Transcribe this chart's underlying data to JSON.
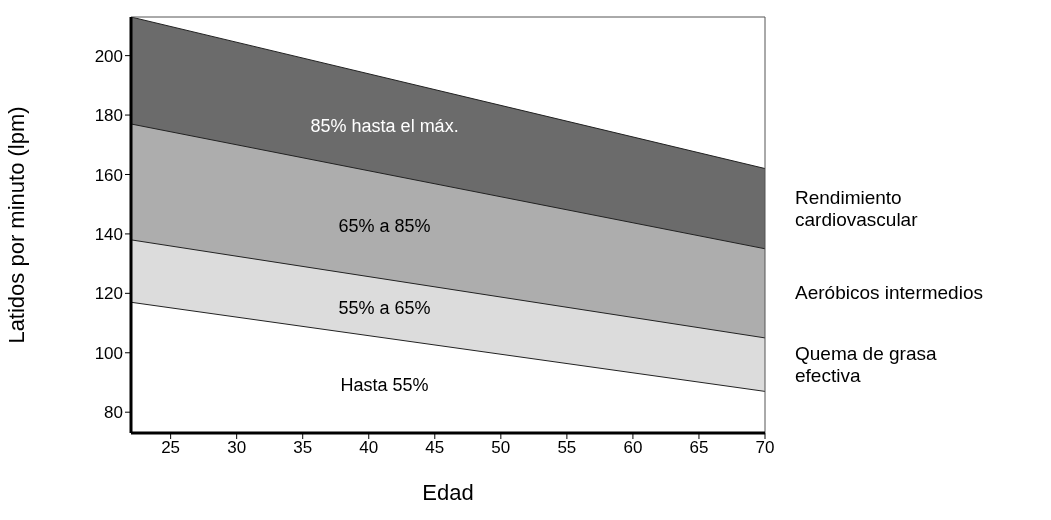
{
  "chart_data": {
    "type": "area",
    "xlabel": "Edad",
    "ylabel": "Latidos por minuto (lpm)",
    "x": [
      22,
      70
    ],
    "series": [
      {
        "color": "#ffffff",
        "values": [
          117,
          87
        ]
      },
      {
        "name": "Quema de grasa efectiva",
        "color": "#dcdcdc",
        "values": [
          138,
          105
        ]
      },
      {
        "name": "Aeróbicos intermedios",
        "color": "#adadad",
        "values": [
          177,
          135
        ]
      },
      {
        "name": "Rendimiento cardiovascular",
        "color": "#6b6b6b",
        "values": [
          213,
          162
        ]
      }
    ],
    "annotations": [
      "Hasta 55%",
      "55% a 65%",
      "65% a 85%",
      "85% hasta el máx."
    ],
    "xlim": [
      22,
      70
    ],
    "xticks": [
      25,
      30,
      35,
      40,
      45,
      50,
      55,
      60,
      65,
      70
    ],
    "ylim": [
      73,
      213
    ],
    "yticks": [
      80,
      100,
      120,
      140,
      160,
      180,
      200
    ],
    "grid": false,
    "legend": false
  }
}
